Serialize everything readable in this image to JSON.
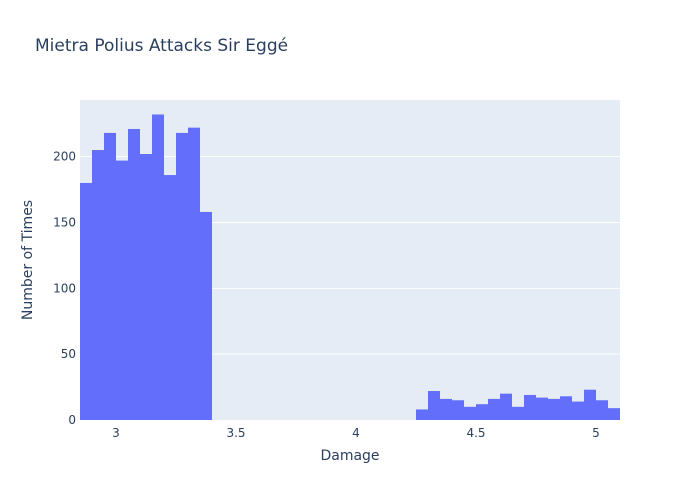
{
  "chart_data": {
    "type": "bar",
    "title": "Mietra Polius Attacks Sir Eggé",
    "xlabel": "Damage",
    "ylabel": "Number of Times",
    "xlim": [
      2.85,
      5.1
    ],
    "ylim": [
      0,
      243
    ],
    "xticks": [
      3,
      3.5,
      4,
      4.5,
      5
    ],
    "xtick_labels": [
      "3",
      "3.5",
      "4",
      "4.5",
      "5"
    ],
    "yticks": [
      0,
      50,
      100,
      150,
      200
    ],
    "ytick_labels": [
      "0",
      "50",
      "100",
      "150",
      "200"
    ],
    "grid": true,
    "bin_width": 0.05,
    "bins": [
      {
        "x0": 2.85,
        "count": 180
      },
      {
        "x0": 2.9,
        "count": 205
      },
      {
        "x0": 2.95,
        "count": 218
      },
      {
        "x0": 3.0,
        "count": 197
      },
      {
        "x0": 3.05,
        "count": 221
      },
      {
        "x0": 3.1,
        "count": 202
      },
      {
        "x0": 3.15,
        "count": 232
      },
      {
        "x0": 3.2,
        "count": 186
      },
      {
        "x0": 3.25,
        "count": 218
      },
      {
        "x0": 3.3,
        "count": 222
      },
      {
        "x0": 3.35,
        "count": 158
      },
      {
        "x0": 4.25,
        "count": 8
      },
      {
        "x0": 4.3,
        "count": 22
      },
      {
        "x0": 4.35,
        "count": 16
      },
      {
        "x0": 4.4,
        "count": 15
      },
      {
        "x0": 4.45,
        "count": 10
      },
      {
        "x0": 4.5,
        "count": 12
      },
      {
        "x0": 4.55,
        "count": 16
      },
      {
        "x0": 4.6,
        "count": 20
      },
      {
        "x0": 4.65,
        "count": 10
      },
      {
        "x0": 4.7,
        "count": 19
      },
      {
        "x0": 4.75,
        "count": 17
      },
      {
        "x0": 4.8,
        "count": 16
      },
      {
        "x0": 4.85,
        "count": 18
      },
      {
        "x0": 4.9,
        "count": 14
      },
      {
        "x0": 4.95,
        "count": 23
      },
      {
        "x0": 5.0,
        "count": 15
      },
      {
        "x0": 5.05,
        "count": 9
      }
    ]
  },
  "colors": {
    "bar": "#636efa",
    "plot_bg": "#e5ecf6",
    "text": "#2a3f5f"
  }
}
